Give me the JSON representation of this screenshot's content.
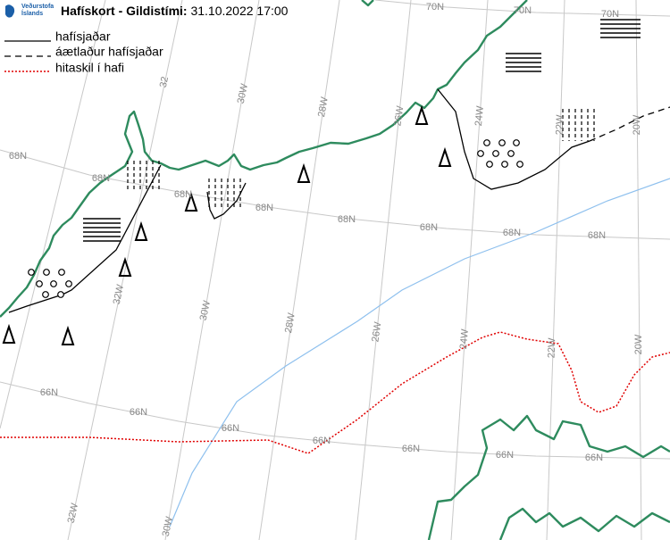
{
  "header": {
    "logo": [
      "Veðurstofa",
      "Íslands"
    ],
    "title": "Hafískort - Gildistími:",
    "valid_time": "31.10.2022 17:00"
  },
  "legend": [
    "hafísjaðar",
    "áætlaður hafísjaðar",
    "hitaskil í hafi"
  ],
  "grid_labels": {
    "lat_70": [
      "70N",
      "70N",
      "70N"
    ],
    "lat_68": [
      "68N",
      "68N",
      "68N",
      "68N",
      "68N",
      "68N",
      "68N",
      "68N"
    ],
    "lat_66": [
      "66N",
      "66N",
      "66N",
      "66N",
      "66N",
      "66N",
      "66N"
    ],
    "lon_top": [
      "32",
      "30W",
      "28W",
      "26W",
      "24W",
      "22W",
      "20W"
    ],
    "lon_mid": [
      "32W",
      "30W",
      "28W",
      "26W",
      "24W",
      "22W",
      "20W"
    ],
    "lon_bottom": [
      "32W",
      "30W"
    ]
  }
}
